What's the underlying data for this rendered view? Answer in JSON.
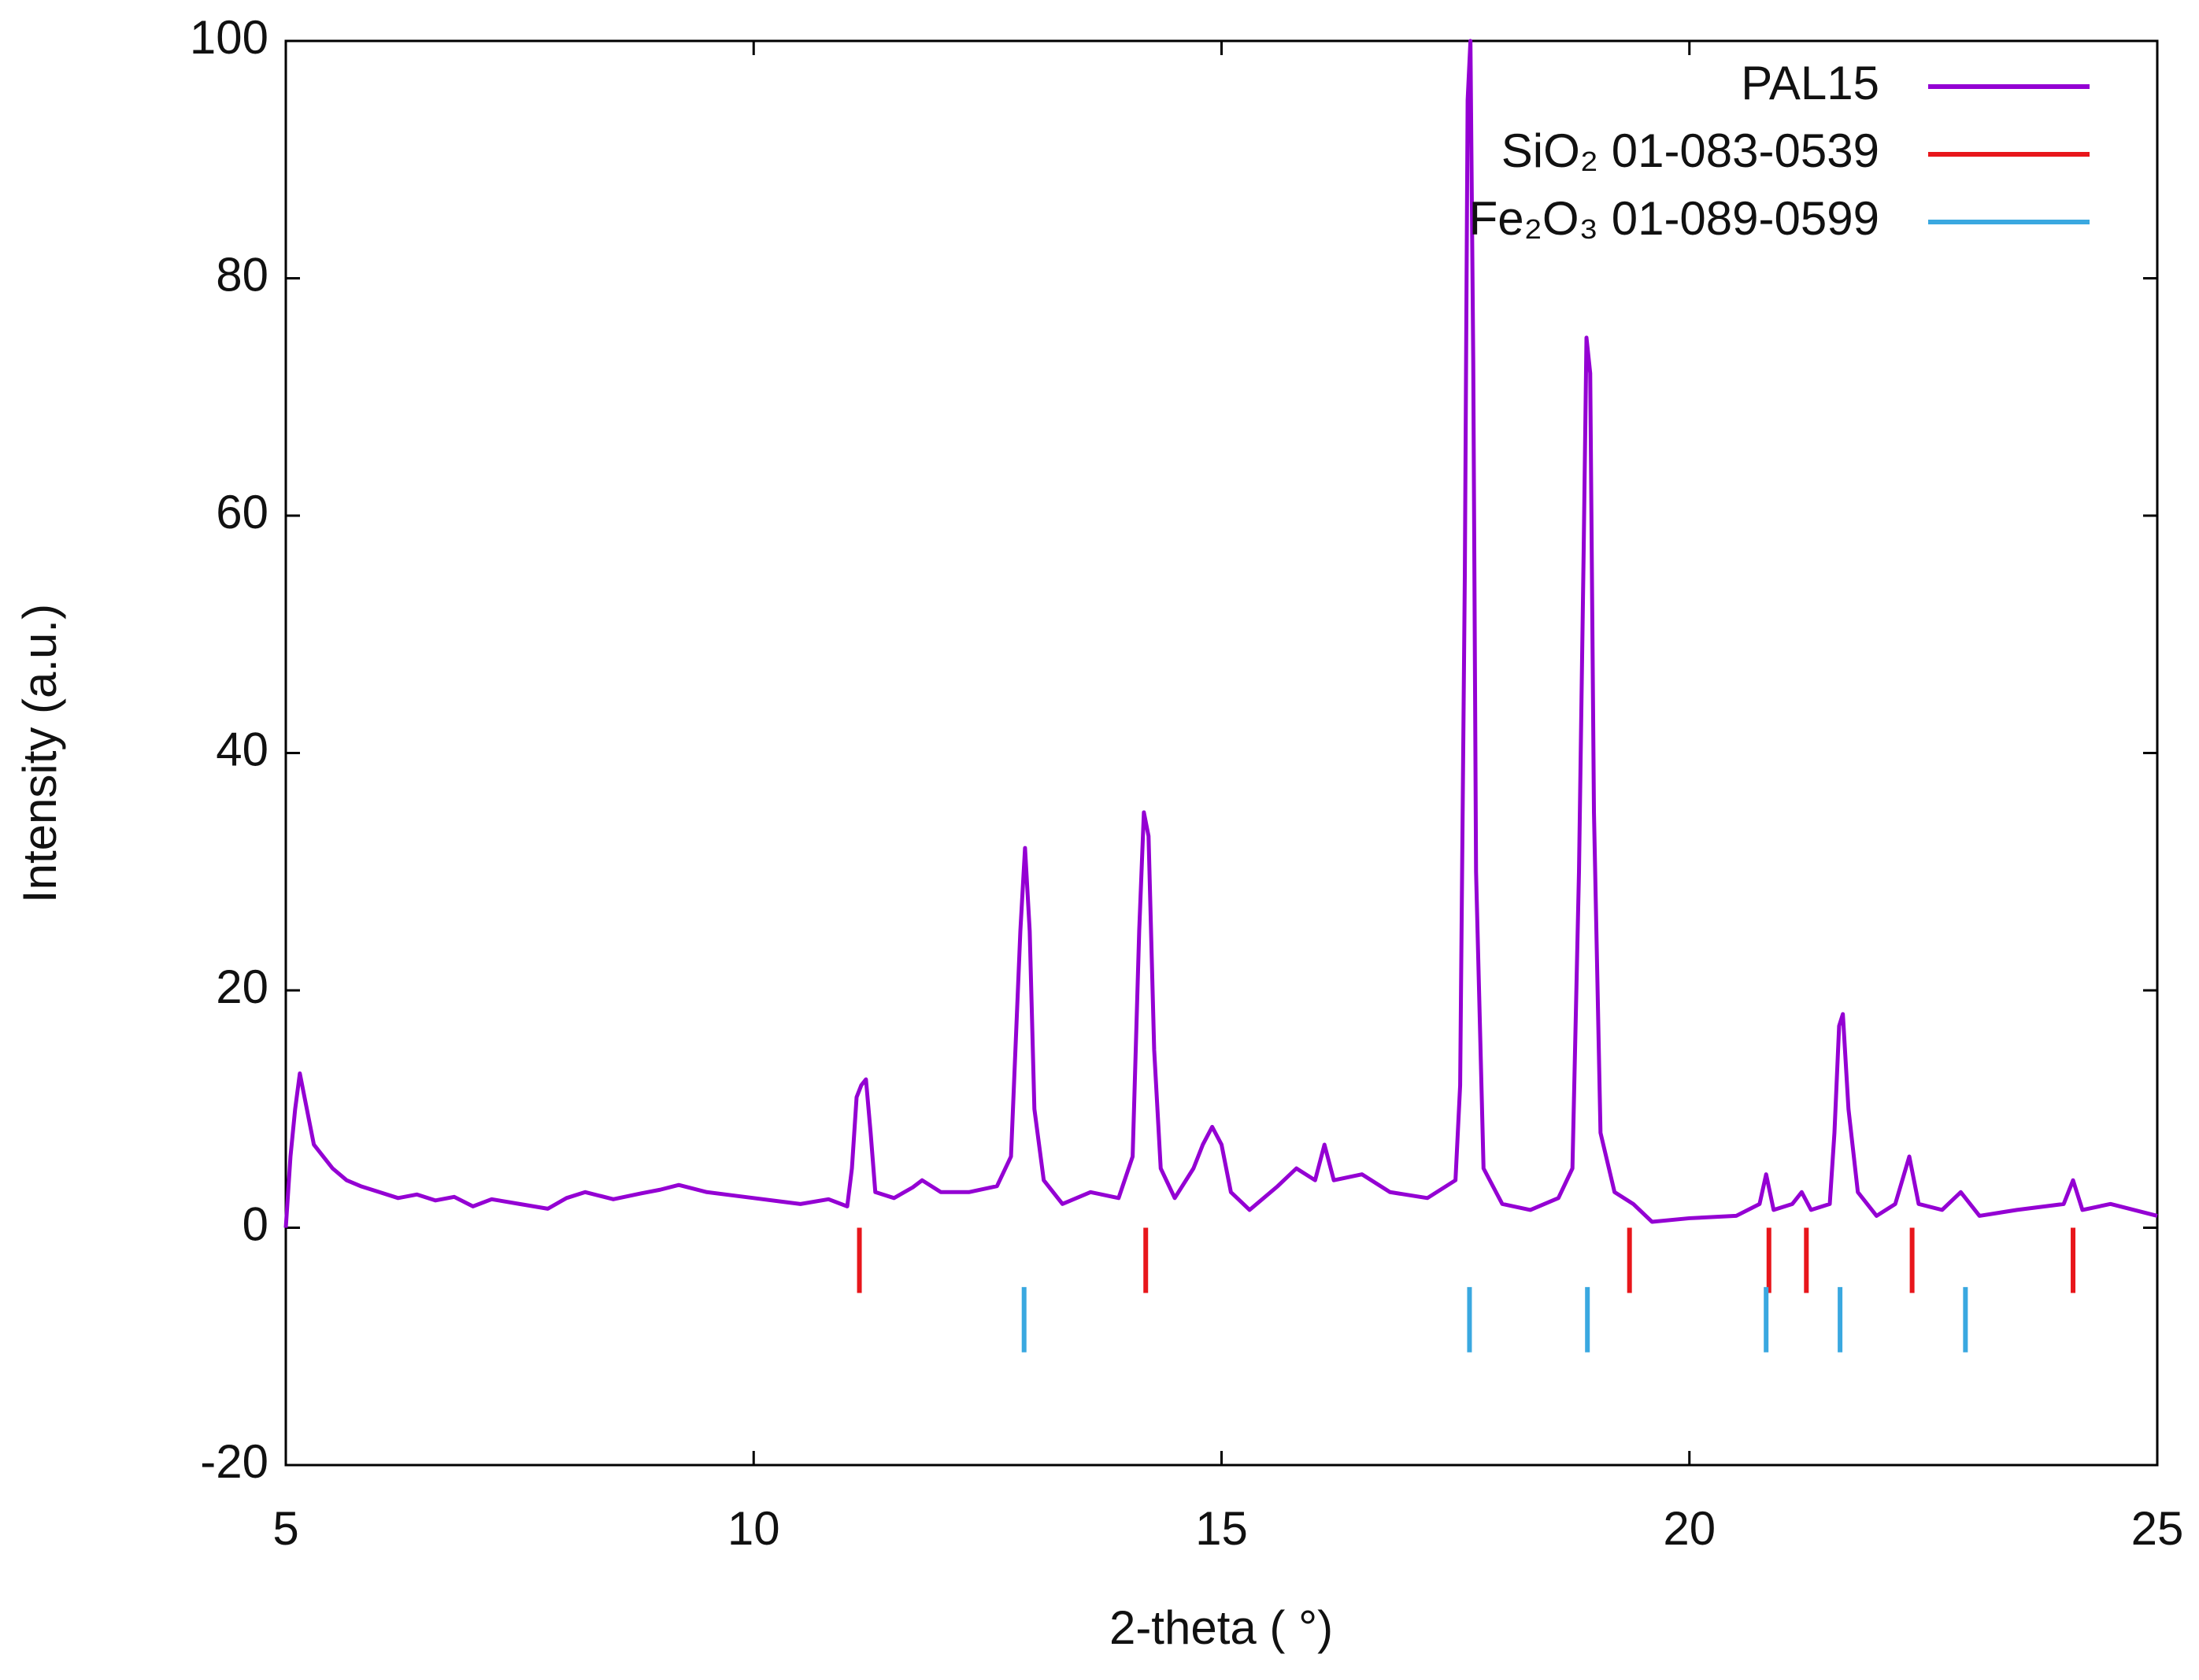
{
  "chart_data": {
    "type": "line",
    "xlabel": "2-theta ( °)",
    "ylabel": "Intensity (a.u.)",
    "xlim": [
      5,
      25
    ],
    "xticks": [
      5,
      10,
      15,
      20,
      25
    ],
    "ylim": [
      -20,
      100
    ],
    "yticks": [
      -20,
      0,
      20,
      40,
      60,
      80,
      100
    ],
    "legend": "upper right",
    "series": [
      {
        "name": "PAL15",
        "color": "#9400d3",
        "style": "line",
        "x": [
          5.0,
          5.05,
          5.1,
          5.15,
          5.2,
          5.3,
          5.4,
          5.5,
          5.65,
          5.8,
          6.0,
          6.2,
          6.4,
          6.6,
          6.8,
          7.0,
          7.2,
          7.5,
          7.8,
          8.0,
          8.2,
          8.5,
          8.8,
          9.0,
          9.2,
          9.5,
          9.8,
          10.0,
          10.3,
          10.5,
          10.8,
          11.0,
          11.05,
          11.1,
          11.15,
          11.2,
          11.25,
          11.3,
          11.5,
          11.7,
          11.8,
          12.0,
          12.3,
          12.6,
          12.75,
          12.85,
          12.9,
          12.95,
          13.0,
          13.1,
          13.3,
          13.6,
          13.9,
          14.05,
          14.12,
          14.17,
          14.22,
          14.28,
          14.35,
          14.5,
          14.7,
          14.8,
          14.9,
          15.0,
          15.1,
          15.3,
          15.6,
          15.8,
          16.0,
          16.1,
          16.2,
          16.5,
          16.8,
          17.2,
          17.5,
          17.55,
          17.6,
          17.63,
          17.66,
          17.69,
          17.72,
          17.8,
          18.0,
          18.3,
          18.6,
          18.75,
          18.82,
          18.87,
          18.9,
          18.94,
          18.98,
          19.05,
          19.2,
          19.4,
          19.6,
          20.0,
          20.5,
          20.75,
          20.82,
          20.9,
          21.1,
          21.2,
          21.3,
          21.5,
          21.55,
          21.6,
          21.64,
          21.7,
          21.8,
          22.0,
          22.2,
          22.35,
          22.45,
          22.7,
          22.9,
          23.1,
          23.5,
          24.0,
          24.1,
          24.2,
          24.5,
          25.0
        ],
        "values": [
          0,
          6,
          10,
          13,
          11,
          7,
          6,
          5,
          4,
          3.5,
          3,
          2.5,
          2.8,
          2.3,
          2.6,
          1.8,
          2.4,
          2,
          1.6,
          2.5,
          3,
          2.4,
          2.9,
          3.2,
          3.6,
          3,
          2.7,
          2.5,
          2.2,
          2,
          2.4,
          1.8,
          5,
          11,
          12,
          12.5,
          8,
          3,
          2.5,
          3.4,
          4,
          3,
          3,
          3.5,
          6,
          25,
          32,
          25,
          10,
          4,
          2,
          3,
          2.5,
          6,
          25,
          35,
          33,
          15,
          5,
          2.5,
          5,
          7,
          8.5,
          7,
          3,
          1.5,
          3.5,
          5,
          4,
          7,
          4,
          4.5,
          3,
          2.5,
          4,
          12,
          55,
          95,
          100,
          73,
          30,
          5,
          2,
          1.5,
          2.5,
          5,
          30,
          57,
          75,
          72,
          35,
          8,
          3,
          2,
          0.5,
          0.8,
          1,
          2,
          4.5,
          1.5,
          2,
          3,
          1.5,
          2,
          8,
          17,
          18,
          10,
          3,
          1,
          2,
          6,
          2,
          1.5,
          3,
          1,
          1.5,
          2,
          4,
          1.5,
          2,
          1
        ]
      },
      {
        "name": "SiO₂ 01-083-0539",
        "color": "#e8161b",
        "style": "ticks",
        "tick_range": [
          0,
          -5.5
        ],
        "x": [
          11.13,
          14.19,
          19.36,
          20.85,
          21.25,
          22.38,
          24.1
        ]
      },
      {
        "name": "Fe₂O₃ 01-089-0599",
        "color": "#3aa8e0",
        "style": "ticks",
        "tick_range": [
          -5,
          -10.5
        ],
        "x": [
          12.89,
          17.65,
          18.91,
          20.82,
          21.61,
          22.95
        ]
      }
    ]
  }
}
